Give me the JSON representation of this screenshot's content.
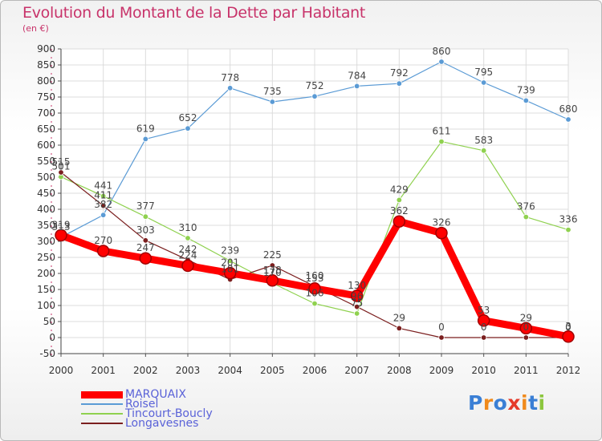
{
  "chart_data": {
    "type": "line",
    "title": "Evolution du Montant de la Dette par Habitant",
    "subtitle": "(en €)",
    "x": [
      "2000",
      "2001",
      "2002",
      "2003",
      "2004",
      "2005",
      "2006",
      "2007",
      "2008",
      "2009",
      "2010",
      "2011",
      "2012"
    ],
    "ylim": [
      -50,
      900
    ],
    "yticks": [
      -50,
      0,
      50,
      100,
      150,
      200,
      250,
      300,
      350,
      400,
      450,
      500,
      550,
      600,
      650,
      700,
      750,
      800,
      850,
      900
    ],
    "grid": true,
    "legend_position": "bottom-left",
    "series": [
      {
        "name": "MARQUAIX",
        "color": "#ff0000",
        "values": [
          319,
          270,
          247,
          224,
          201,
          178,
          153,
          130,
          362,
          326,
          53,
          29,
          3
        ]
      },
      {
        "name": "Roisel",
        "color": "#5b9bd5",
        "values": [
          313,
          382,
          619,
          652,
          778,
          735,
          752,
          784,
          792,
          860,
          795,
          739,
          680
        ]
      },
      {
        "name": "Tincourt-Boucly",
        "color": "#8fd14f",
        "values": [
          501,
          441,
          377,
          310,
          239,
          170,
          106,
          75,
          429,
          611,
          583,
          376,
          336
        ]
      },
      {
        "name": "Longavesnes",
        "color": "#7b1f1f",
        "values": [
          515,
          411,
          303,
          242,
          181,
          225,
          160,
          96,
          29,
          0,
          0,
          0,
          0
        ]
      }
    ]
  },
  "logo": {
    "letters": [
      "P",
      "r",
      "o",
      "x",
      "i",
      "t",
      "i"
    ],
    "colors": [
      "#3a7fd5",
      "#f08a1c",
      "#3a7fd5",
      "#e53a2a",
      "#f08a1c",
      "#3a7fd5",
      "#8cc63e"
    ]
  }
}
